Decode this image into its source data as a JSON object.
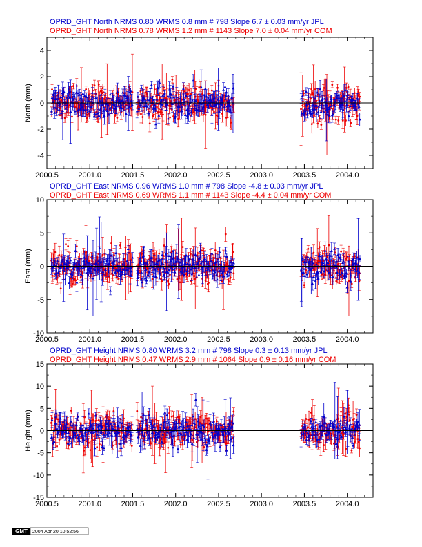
{
  "colors": {
    "jpl": "#0000cc",
    "com": "#ee0000",
    "axis": "#000000",
    "background": "#ffffff"
  },
  "chart_data": [
    {
      "type": "scatter",
      "component": "North",
      "titles": [
        "OPRD_GHT North NRMS 0.80 WRMS  0.8 mm # 798 Slope    6.7 ±  0.03 mm/yr JPL",
        "OPRD_GHT North NRMS 0.78 WRMS  1.2 mm # 1143 Slope   7.0 ±  0.04 mm/yr COM"
      ],
      "ylabel": "North (mm)",
      "xlim": [
        2000.5,
        2004.3
      ],
      "ylim": [
        -5,
        5
      ],
      "xticks": [
        "2000.5",
        "2001.0",
        "2001.5",
        "2002.0",
        "2002.5",
        "2003.0",
        "2003.5",
        "2004.0"
      ],
      "yticks": [
        "-4",
        "-2",
        "0",
        "2",
        "4"
      ],
      "grid": false,
      "series": [
        {
          "name": "JPL",
          "n": 798,
          "wrms_mm": 0.8,
          "nrms": 0.8,
          "slope_mm_yr": 6.7,
          "slope_sigma": 0.03,
          "marker": "triangle",
          "color": "#0000cc"
        },
        {
          "name": "COM",
          "n": 1143,
          "wrms_mm": 1.2,
          "nrms": 0.78,
          "slope_mm_yr": 7.0,
          "slope_sigma": 0.04,
          "marker": "circle",
          "color": "#ee0000"
        }
      ],
      "data_segments": [
        [
          2000.55,
          2000.62
        ],
        [
          2000.62,
          2001.5
        ],
        [
          2001.55,
          2002.68
        ],
        [
          2003.46,
          2004.15
        ]
      ]
    },
    {
      "type": "scatter",
      "component": "East",
      "titles": [
        "OPRD_GHT East NRMS 0.96 WRMS  1.0 mm # 798 Slope   -4.8 ±  0.03 mm/yr JPL",
        "OPRD_GHT East NRMS 0.69 WRMS  1.1 mm # 1143 Slope   -4.4 ±  0.04 mm/yr COM"
      ],
      "ylabel": "East (mm)",
      "xlim": [
        2000.5,
        2004.3
      ],
      "ylim": [
        -10,
        10
      ],
      "xticks": [
        "2000.5",
        "2001.0",
        "2001.5",
        "2002.0",
        "2002.5",
        "2003.0",
        "2003.5",
        "2004.0"
      ],
      "yticks": [
        "-10",
        "-5",
        "0",
        "5",
        "10"
      ],
      "grid": false,
      "series": [
        {
          "name": "JPL",
          "n": 798,
          "wrms_mm": 1.0,
          "nrms": 0.96,
          "slope_mm_yr": -4.8,
          "slope_sigma": 0.03,
          "marker": "triangle",
          "color": "#0000cc"
        },
        {
          "name": "COM",
          "n": 1143,
          "wrms_mm": 1.1,
          "nrms": 0.69,
          "slope_mm_yr": -4.4,
          "slope_sigma": 0.04,
          "marker": "circle",
          "color": "#ee0000"
        }
      ],
      "data_segments": [
        [
          2000.55,
          2000.62
        ],
        [
          2000.62,
          2001.5
        ],
        [
          2001.55,
          2002.68
        ],
        [
          2003.46,
          2004.15
        ]
      ]
    },
    {
      "type": "scatter",
      "component": "Height",
      "titles": [
        "OPRD_GHT Height NRMS 0.80 WRMS  3.2 mm # 798 Slope    0.3 ±  0.13 mm/yr JPL",
        "OPRD_GHT Height NRMS 0.47 WRMS  2.9 mm # 1064 Slope   0.9 ±  0.16 mm/yr COM"
      ],
      "ylabel": "Height (mm)",
      "xlim": [
        2000.5,
        2004.3
      ],
      "ylim": [
        -15,
        15
      ],
      "xticks": [
        "2000.5",
        "2001.0",
        "2001.5",
        "2002.0",
        "2002.5",
        "2003.0",
        "2003.5",
        "2004.0"
      ],
      "yticks": [
        "-15",
        "-10",
        "-5",
        "0",
        "5",
        "10",
        "15"
      ],
      "grid": false,
      "series": [
        {
          "name": "JPL",
          "n": 798,
          "wrms_mm": 3.2,
          "nrms": 0.8,
          "slope_mm_yr": 0.3,
          "slope_sigma": 0.13,
          "marker": "triangle",
          "color": "#0000cc"
        },
        {
          "name": "COM",
          "n": 1064,
          "wrms_mm": 2.9,
          "nrms": 0.47,
          "slope_mm_yr": 0.9,
          "slope_sigma": 0.16,
          "marker": "circle",
          "color": "#ee0000"
        }
      ],
      "data_segments": [
        [
          2000.55,
          2000.62
        ],
        [
          2000.62,
          2001.5
        ],
        [
          2001.55,
          2002.68
        ],
        [
          2003.46,
          2004.15
        ]
      ]
    }
  ],
  "footer": {
    "logo": "GMT",
    "timestamp": "2004 Apr 20 10:52:56"
  }
}
